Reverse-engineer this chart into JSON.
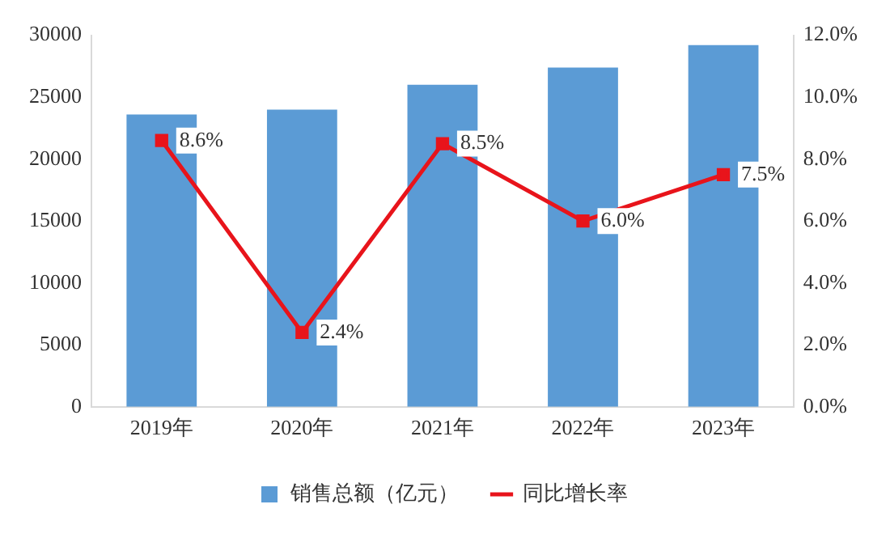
{
  "chart_data": {
    "type": "bar",
    "categories": [
      "2019年",
      "2020年",
      "2021年",
      "2022年",
      "2023年"
    ],
    "series": [
      {
        "name": "销售总额（亿元）",
        "color": "#5b9bd5",
        "values": [
          23600,
          24000,
          26000,
          27400,
          29200
        ]
      },
      {
        "name": "同比增长率",
        "type": "line",
        "axis": "y2",
        "color": "#e8141b",
        "values": [
          8.6,
          2.4,
          8.5,
          6.0,
          7.5
        ],
        "value_labels": [
          "8.6%",
          "2.4%",
          "8.5%",
          "6.0%",
          "7.5%"
        ],
        "marker": "square",
        "line_style": "solid"
      }
    ],
    "ylim": [
      0,
      30000
    ],
    "yticks": [
      0,
      5000,
      10000,
      15000,
      20000,
      25000,
      30000
    ],
    "y2lim": [
      0,
      12
    ],
    "y2ticks": [
      {
        "value": 0,
        "label": "0.0%"
      },
      {
        "value": 2,
        "label": "2.0%"
      },
      {
        "value": 4,
        "label": "4.0%"
      },
      {
        "value": 6,
        "label": "6.0%"
      },
      {
        "value": 8,
        "label": "8.0%"
      },
      {
        "value": 10,
        "label": "10.0%"
      },
      {
        "value": 12,
        "label": "12.0%"
      }
    ],
    "grid": false,
    "legend": "bottom"
  }
}
